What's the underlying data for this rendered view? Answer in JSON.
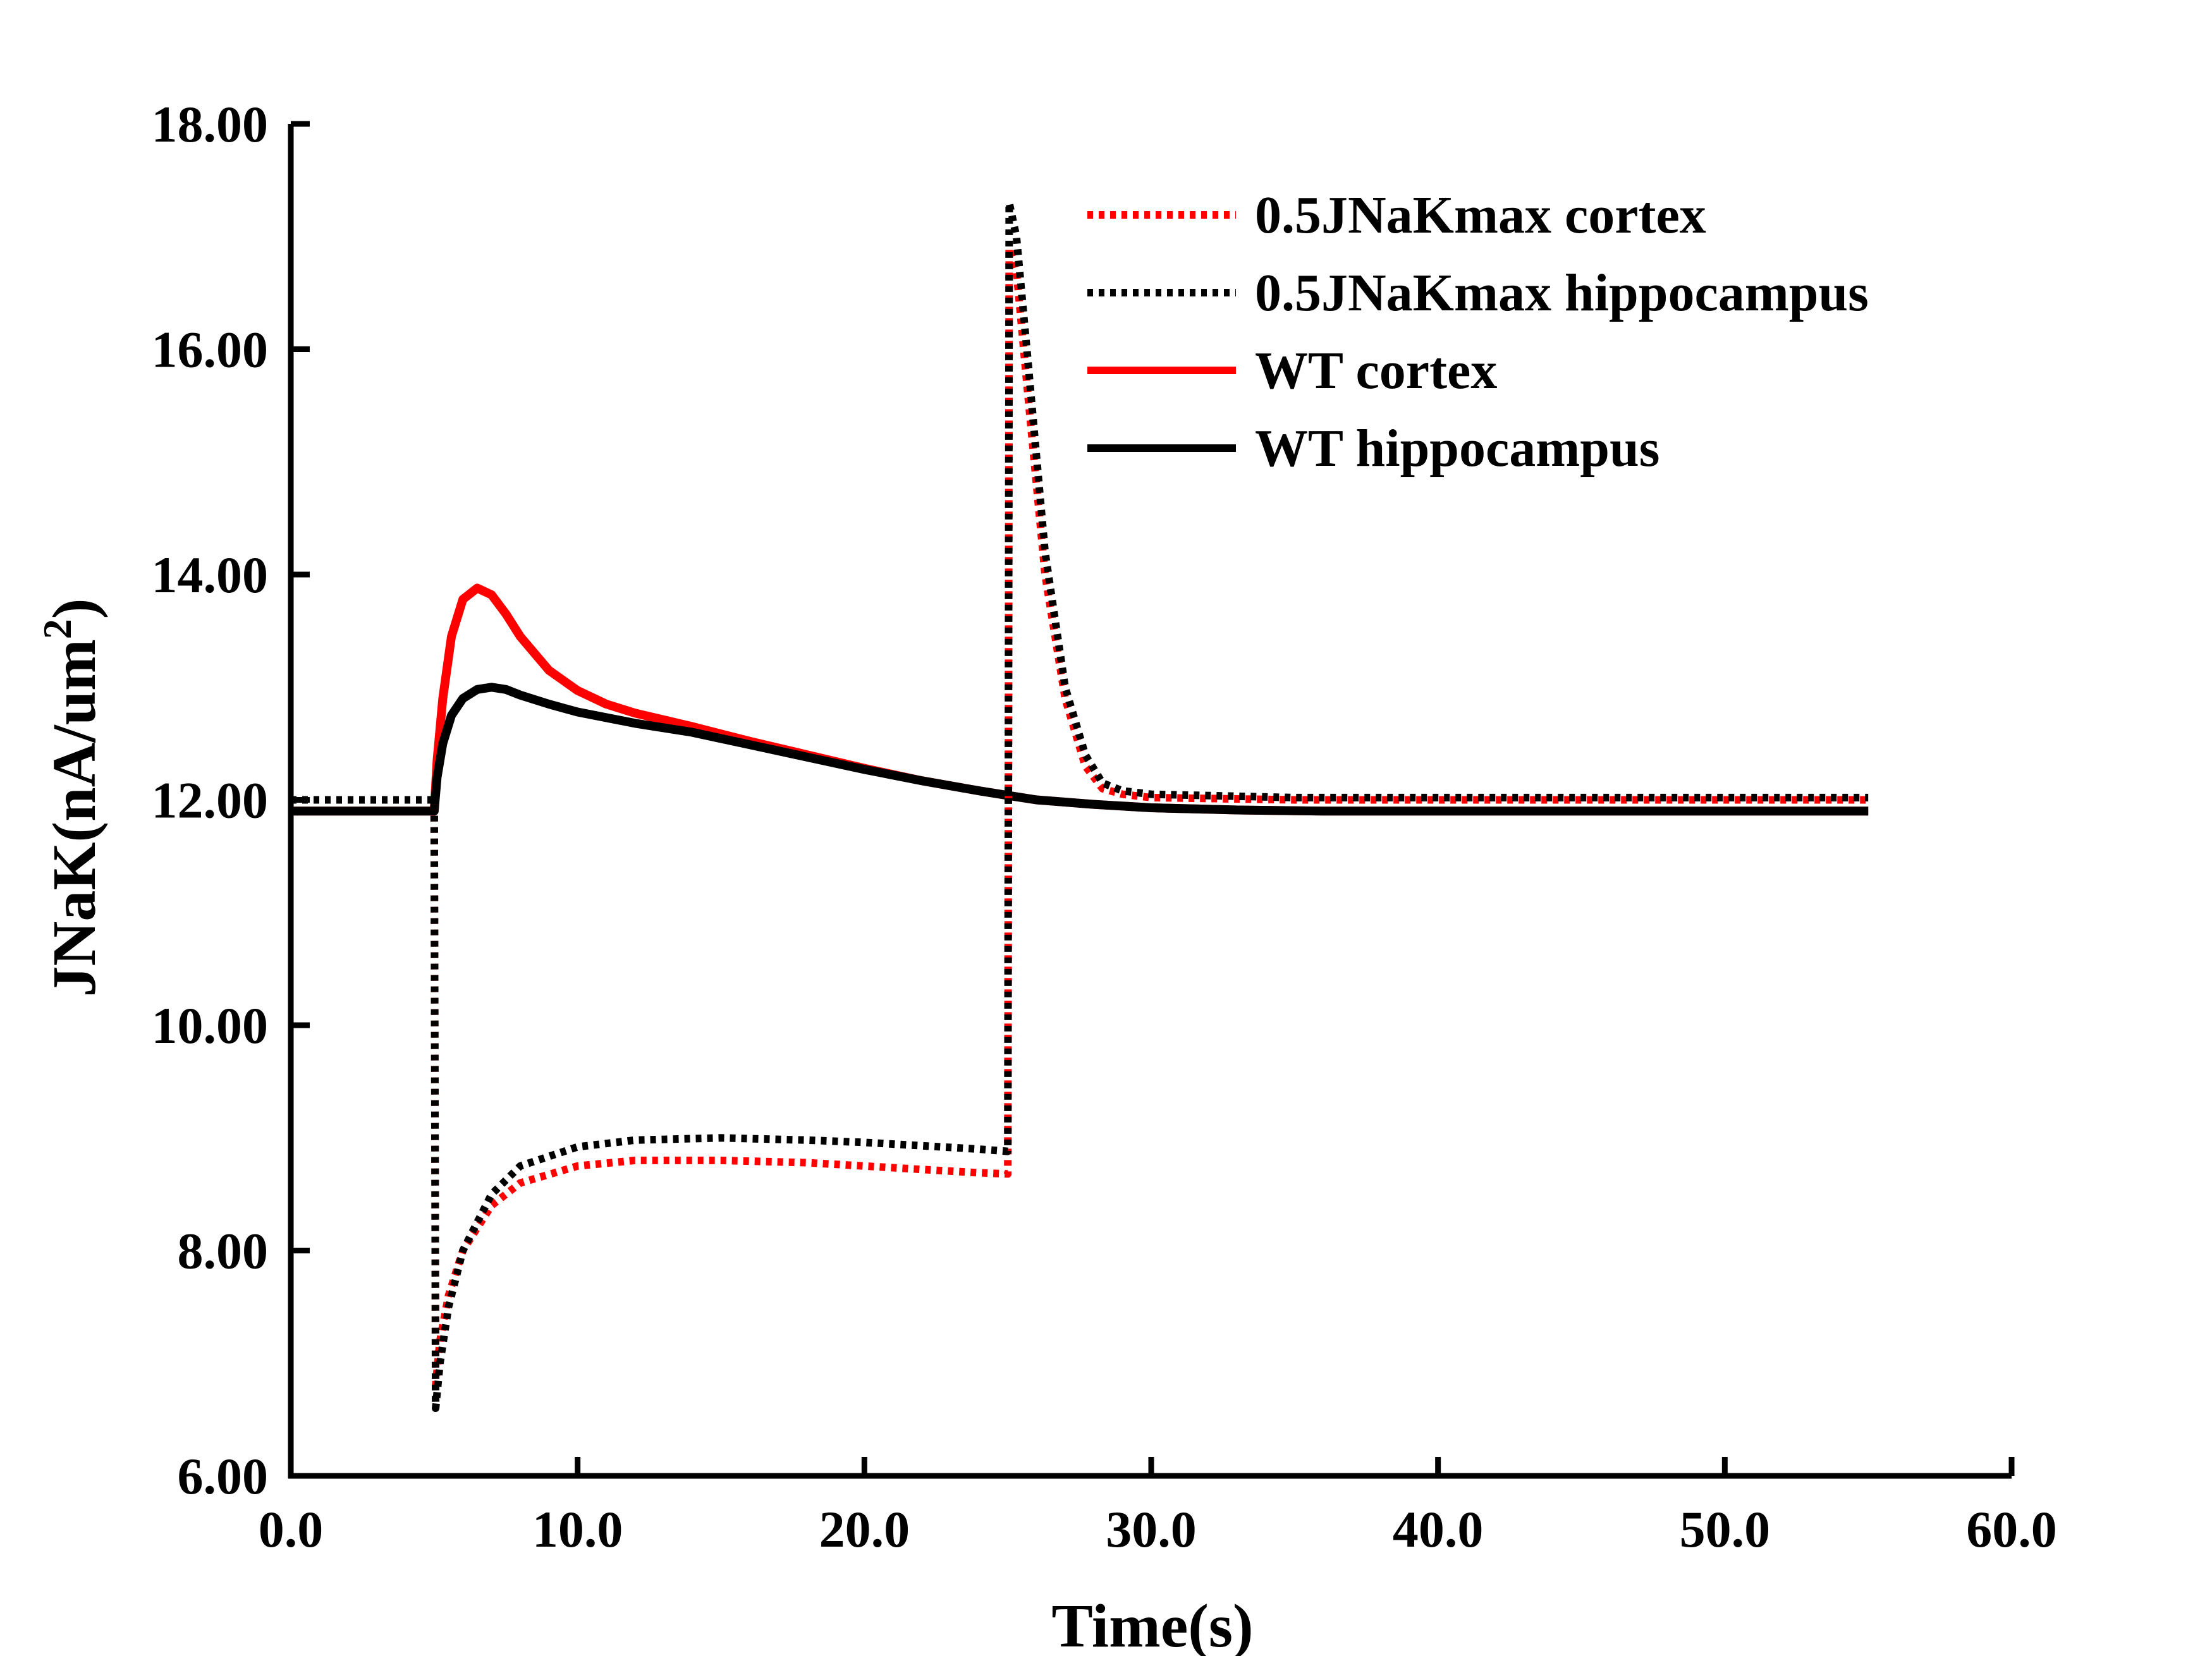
{
  "chart_data": {
    "type": "line",
    "xlabel": "Time(s)",
    "ylabel_main": "JNaK(nA/um",
    "ylabel_sup": "2",
    "ylabel_close": ")",
    "xlim": [
      0,
      60
    ],
    "ylim": [
      6,
      18
    ],
    "x_ticks": [
      "0.0",
      "10.0",
      "20.0",
      "30.0",
      "40.0",
      "50.0",
      "60.0"
    ],
    "y_ticks": [
      "6.00",
      "8.00",
      "10.00",
      "12.00",
      "14.00",
      "16.00",
      "18.00"
    ],
    "grid": false,
    "legend_position": "top-right",
    "series": [
      {
        "name": "0.5JNaKmax cortex",
        "color": "#ff0000",
        "style": "dotted",
        "x": [
          0,
          5,
          5.05,
          5.2,
          5.5,
          6,
          7,
          8,
          10,
          12,
          15,
          18,
          20,
          22,
          24,
          25,
          25.05,
          25.3,
          25.7,
          26.3,
          27,
          27.7,
          28.3,
          29,
          30,
          35,
          40,
          45,
          50,
          55
        ],
        "y": [
          12.0,
          12.0,
          6.8,
          7.2,
          7.6,
          8.0,
          8.4,
          8.6,
          8.75,
          8.8,
          8.8,
          8.78,
          8.75,
          8.72,
          8.69,
          8.68,
          16.9,
          16.7,
          15.6,
          14.0,
          12.9,
          12.3,
          12.1,
          12.05,
          12.02,
          12.0,
          12.0,
          12.0,
          12.0,
          12.0
        ]
      },
      {
        "name": "0.5JNaKmax hippocampus",
        "color": "#000000",
        "style": "dotted",
        "x": [
          0,
          5,
          5.05,
          5.2,
          5.5,
          6,
          7,
          8,
          10,
          12,
          15,
          18,
          20,
          22,
          24,
          25,
          25.05,
          25.3,
          25.7,
          26.3,
          27,
          27.7,
          28.3,
          29,
          30,
          35,
          40,
          45,
          50,
          55
        ],
        "y": [
          12.0,
          12.0,
          6.6,
          7.0,
          7.5,
          8.0,
          8.5,
          8.75,
          8.92,
          8.98,
          9.0,
          8.98,
          8.96,
          8.93,
          8.9,
          8.88,
          17.3,
          17.0,
          15.9,
          14.2,
          13.0,
          12.4,
          12.15,
          12.08,
          12.05,
          12.02,
          12.02,
          12.02,
          12.02,
          12.02
        ]
      },
      {
        "name": "WT cortex",
        "color": "#ff0000",
        "style": "solid",
        "x": [
          0,
          5,
          5.1,
          5.3,
          5.6,
          6,
          6.5,
          7,
          7.5,
          8,
          9,
          10,
          11,
          12,
          14,
          16,
          18,
          20,
          22,
          24,
          25,
          26,
          28,
          30,
          33,
          36,
          40,
          45,
          50,
          55
        ],
        "y": [
          11.9,
          11.9,
          12.35,
          12.9,
          13.45,
          13.78,
          13.88,
          13.82,
          13.65,
          13.45,
          13.15,
          12.97,
          12.85,
          12.77,
          12.65,
          12.52,
          12.4,
          12.28,
          12.17,
          12.08,
          12.04,
          12.0,
          11.96,
          11.93,
          11.91,
          11.9,
          11.9,
          11.9,
          11.9,
          11.9
        ]
      },
      {
        "name": "WT hippocampus",
        "color": "#000000",
        "style": "solid",
        "x": [
          0,
          5,
          5.1,
          5.3,
          5.6,
          6,
          6.5,
          7,
          7.5,
          8,
          9,
          10,
          11,
          12,
          14,
          16,
          18,
          20,
          22,
          24,
          25,
          26,
          28,
          30,
          33,
          36,
          40,
          45,
          50,
          55
        ],
        "y": [
          11.9,
          11.9,
          12.2,
          12.5,
          12.75,
          12.9,
          12.98,
          13.0,
          12.98,
          12.93,
          12.85,
          12.78,
          12.73,
          12.68,
          12.6,
          12.49,
          12.38,
          12.27,
          12.17,
          12.08,
          12.04,
          12.0,
          11.96,
          11.93,
          11.91,
          11.9,
          11.9,
          11.9,
          11.9,
          11.9
        ]
      }
    ]
  }
}
